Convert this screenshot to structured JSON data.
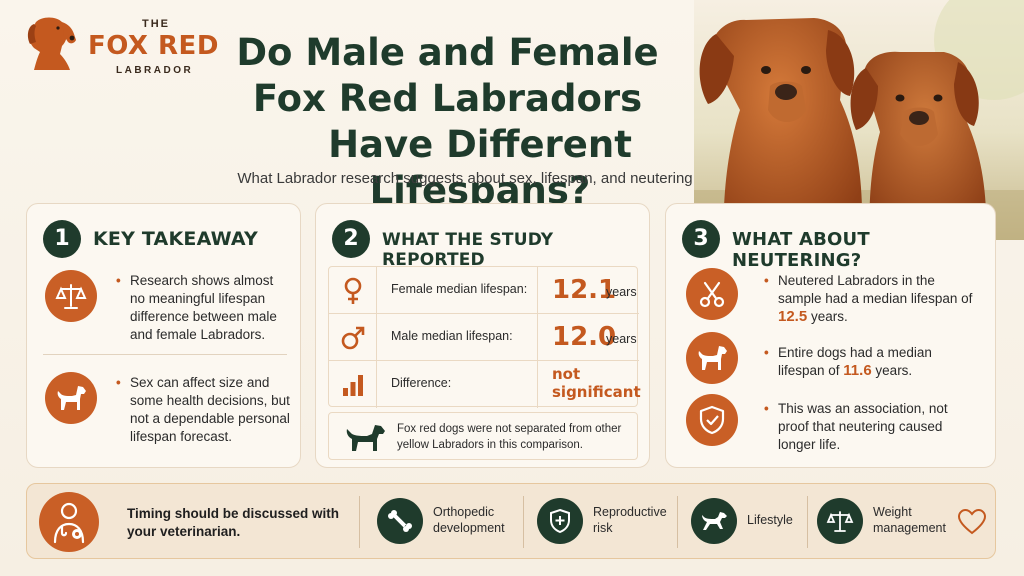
{
  "logo": {
    "the": "THE",
    "fox": "FOX RED",
    "labrador": "LABRADOR"
  },
  "title": {
    "line1": "Do Male and Female",
    "line2": "Fox Red Labradors",
    "line3": "Have Different Lifespans?"
  },
  "subtitle": "What Labrador research suggests about sex, lifespan, and neutering",
  "card1": {
    "number": "1",
    "title": "KEY TAKEAWAY",
    "items": [
      {
        "icon": "scales-icon",
        "text": "Research shows almost no meaningful lifespan difference between male and female Labradors."
      },
      {
        "icon": "dog-icon",
        "text": "Sex can affect size and some health decisions, but not a dependable personal lifespan forecast."
      }
    ]
  },
  "card2": {
    "number": "2",
    "title": "WHAT THE STUDY REPORTED",
    "rows": [
      {
        "icon": "female-symbol-icon",
        "label": "Female median lifespan:",
        "value": "12.1",
        "unit": "years"
      },
      {
        "icon": "male-symbol-icon",
        "label": "Male median lifespan:",
        "value": "12.0",
        "unit": "years"
      },
      {
        "icon": "bar-chart-icon",
        "label": "Difference:",
        "value_line1": "not",
        "value_line2": "significant"
      }
    ],
    "note": "Fox red dogs were not separated from other yellow Labradors in this comparison."
  },
  "card3": {
    "number": "3",
    "title": "WHAT ABOUT NEUTERING?",
    "items": [
      {
        "icon": "scissors-icon",
        "pre": "Neutered Labradors in the sample had a median lifespan of ",
        "highlight": "12.5",
        "post": " years."
      },
      {
        "icon": "dog-icon",
        "pre": "Entire dogs had a median lifespan of ",
        "highlight": "11.6",
        "post": " years."
      },
      {
        "icon": "shield-check-icon",
        "text": "This was an association, not proof that neutering caused longer life."
      }
    ]
  },
  "bottom": {
    "timing": "Timing should be discussed with your veterinarian.",
    "factors": [
      {
        "icon": "bone-joint-icon",
        "label_line1": "Orthopedic",
        "label_line2": "development"
      },
      {
        "icon": "shield-plus-icon",
        "label_line1": "Reproductive",
        "label_line2": "risk"
      },
      {
        "icon": "running-dog-icon",
        "label_line1": "Lifestyle",
        "label_line2": ""
      },
      {
        "icon": "scales-icon",
        "label_line1": "Weight",
        "label_line2": "management"
      }
    ]
  },
  "colors": {
    "accent": "#c4591f",
    "dark_green": "#1f3b2c",
    "background": "#f8f1e6"
  }
}
